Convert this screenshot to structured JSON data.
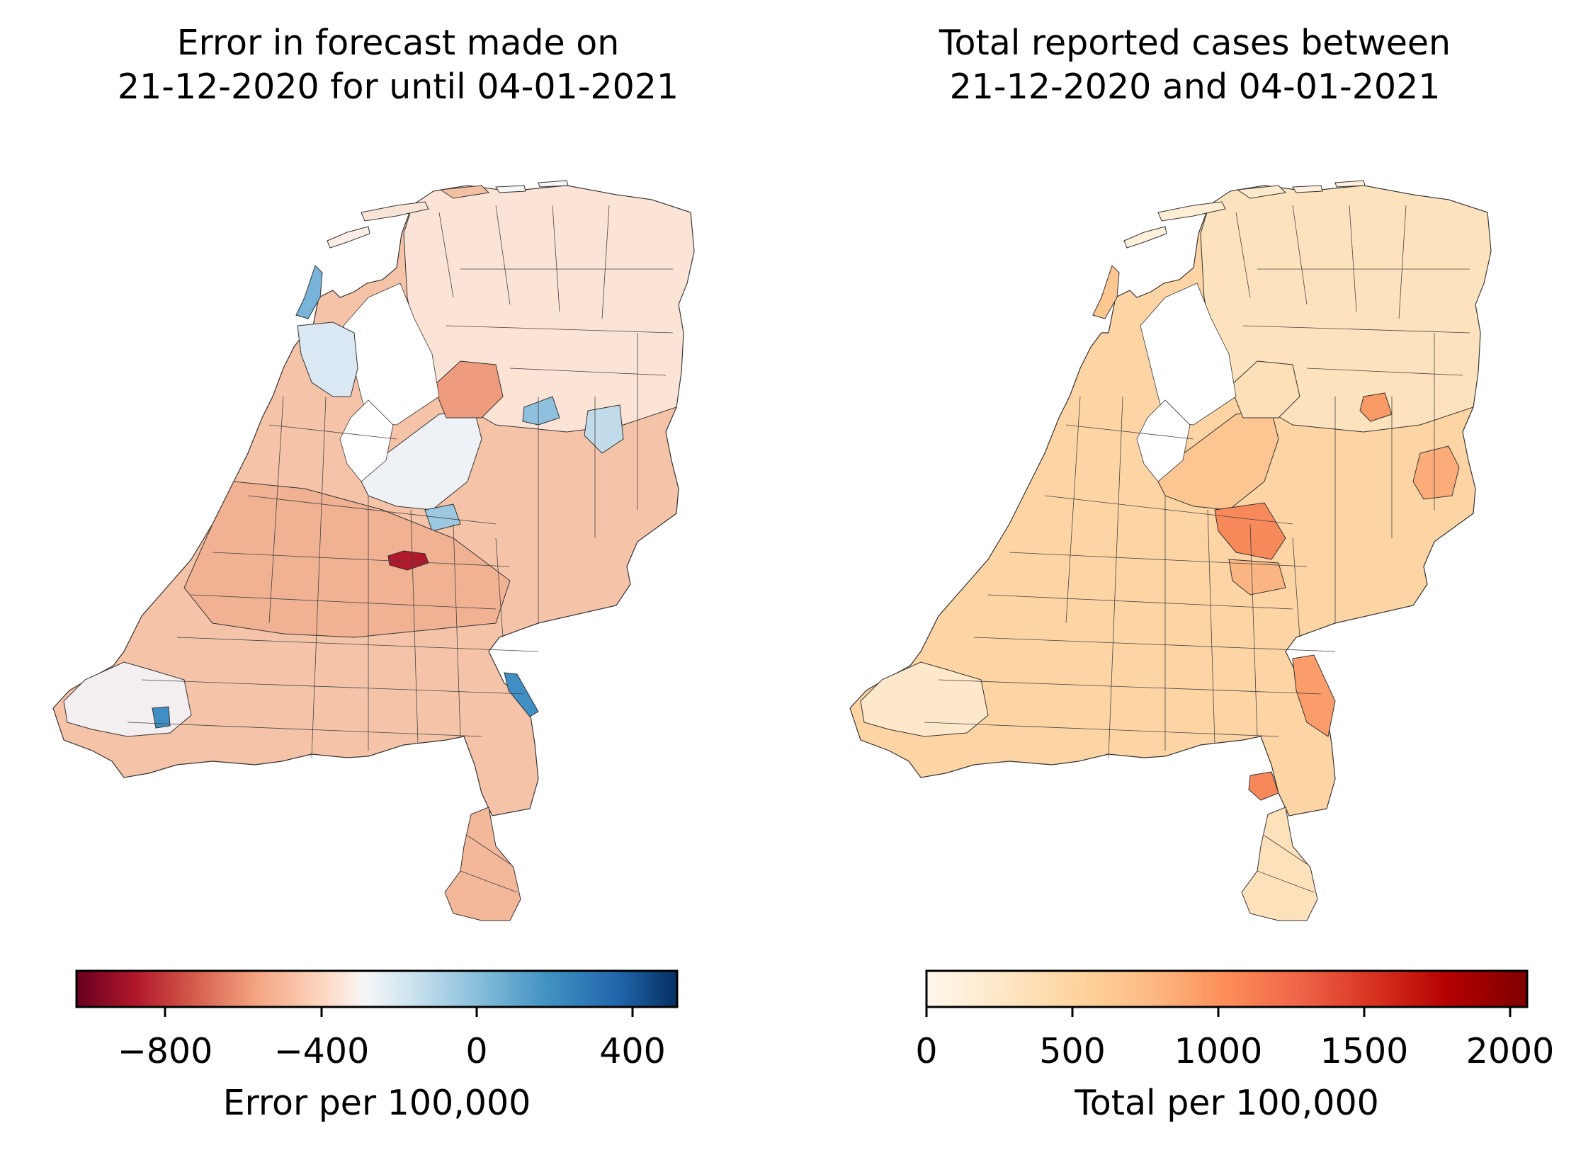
{
  "left_panel": {
    "title_line1": "Error in forecast made on",
    "title_line2": "21-12-2020 for until 04-01-2021",
    "colorbar": {
      "label": "Error per 100,000",
      "range": [
        -1050,
        500
      ],
      "ticks": [
        "−800",
        "−400",
        "0",
        "400"
      ],
      "tick_values": [
        -800,
        -400,
        0,
        400
      ],
      "colormap": "RdBu",
      "stops": [
        "#67001f",
        "#b2182b",
        "#d6604d",
        "#f4a582",
        "#fddbc7",
        "#f7f7f7",
        "#d1e5f0",
        "#92c5de",
        "#4393c3",
        "#2166ac",
        "#053061"
      ]
    }
  },
  "right_panel": {
    "title_line1": "Total reported cases between",
    "title_line2": "21-12-2020 and 04-01-2021",
    "colorbar": {
      "label": "Total per 100,000",
      "range": [
        0,
        2060
      ],
      "ticks": [
        "0",
        "500",
        "1000",
        "1500",
        "2000"
      ],
      "tick_values": [
        0,
        500,
        1000,
        1500,
        2000
      ],
      "colormap": "OrRd",
      "stops": [
        "#fff7ec",
        "#fee8c8",
        "#fdd49e",
        "#fdbb84",
        "#fc8d59",
        "#ef6548",
        "#d7301f",
        "#b30000",
        "#7f0000"
      ]
    }
  },
  "colors": {
    "boundary": "#333333",
    "left_base": "#f6c3a7",
    "left_light": "#fbe2d4",
    "left_neutral": "#f4f4f4",
    "left_lightblue": "#c9dfee",
    "left_blue": "#6aaed6",
    "left_darkred": "#b2182b",
    "left_mid": "#ee9a7c",
    "right_base": "#fdd6a6",
    "right_light": "#fee6c4",
    "right_hot": "#f8885e",
    "right_warm": "#fbb587"
  }
}
